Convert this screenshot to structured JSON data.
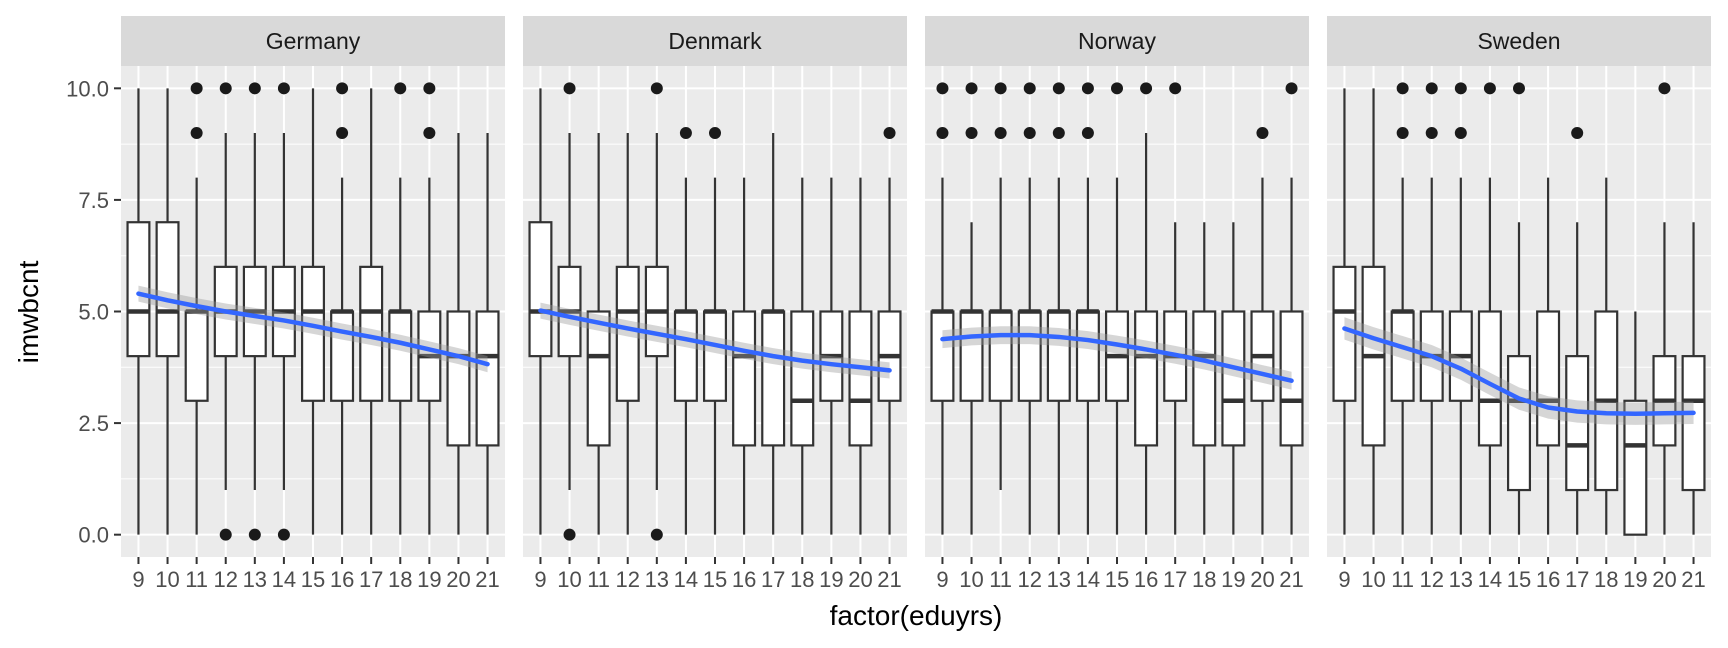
{
  "chart_data": {
    "type": "boxplot",
    "xlabel": "factor(eduyrs)",
    "ylabel": "imwbcnt",
    "ylim": [
      -0.5,
      10.5
    ],
    "y_ticks": [
      0.0,
      2.5,
      5.0,
      7.5,
      10.0
    ],
    "y_tick_labels": [
      "0.0",
      "2.5",
      "5.0",
      "7.5",
      "10.0"
    ],
    "categories": [
      "9",
      "10",
      "11",
      "12",
      "13",
      "14",
      "15",
      "16",
      "17",
      "18",
      "19",
      "20",
      "21"
    ],
    "grid": true,
    "smooth_line_color": "#3366FF",
    "panels": [
      {
        "name": "Germany",
        "boxes": [
          {
            "x": "9",
            "lower": 0,
            "q1": 4,
            "median": 5,
            "q3": 7,
            "upper": 10,
            "outliers": []
          },
          {
            "x": "10",
            "lower": 0,
            "q1": 4,
            "median": 5,
            "q3": 7,
            "upper": 10,
            "outliers": []
          },
          {
            "x": "11",
            "lower": 0,
            "q1": 3,
            "median": 5,
            "q3": 5,
            "upper": 8,
            "outliers": [
              9,
              10
            ]
          },
          {
            "x": "12",
            "lower": 1,
            "q1": 4,
            "median": 5,
            "q3": 6,
            "upper": 9,
            "outliers": [
              0,
              10
            ]
          },
          {
            "x": "13",
            "lower": 1,
            "q1": 4,
            "median": 5,
            "q3": 6,
            "upper": 9,
            "outliers": [
              0,
              10
            ]
          },
          {
            "x": "14",
            "lower": 1,
            "q1": 4,
            "median": 5,
            "q3": 6,
            "upper": 9,
            "outliers": [
              0,
              10
            ]
          },
          {
            "x": "15",
            "lower": 0,
            "q1": 3,
            "median": 5,
            "q3": 6,
            "upper": 10,
            "outliers": []
          },
          {
            "x": "16",
            "lower": 0,
            "q1": 3,
            "median": 5,
            "q3": 5,
            "upper": 8,
            "outliers": [
              9,
              10
            ]
          },
          {
            "x": "17",
            "lower": 0,
            "q1": 3,
            "median": 5,
            "q3": 6,
            "upper": 10,
            "outliers": []
          },
          {
            "x": "18",
            "lower": 0,
            "q1": 3,
            "median": 5,
            "q3": 5,
            "upper": 8,
            "outliers": [
              10
            ]
          },
          {
            "x": "19",
            "lower": 0,
            "q1": 3,
            "median": 4,
            "q3": 5,
            "upper": 8,
            "outliers": [
              9,
              10
            ]
          },
          {
            "x": "20",
            "lower": 0,
            "q1": 2,
            "median": 4,
            "q3": 5,
            "upper": 9,
            "outliers": []
          },
          {
            "x": "21",
            "lower": 0,
            "q1": 2,
            "median": 4,
            "q3": 5,
            "upper": 9,
            "outliers": []
          }
        ],
        "smooth": [
          5.4,
          5.25,
          5.12,
          5.0,
          4.9,
          4.8,
          4.68,
          4.55,
          4.43,
          4.3,
          4.15,
          4.0,
          3.82
        ],
        "band": 0.18
      },
      {
        "name": "Denmark",
        "boxes": [
          {
            "x": "9",
            "lower": 0,
            "q1": 4,
            "median": 5,
            "q3": 7,
            "upper": 10,
            "outliers": []
          },
          {
            "x": "10",
            "lower": 1,
            "q1": 4,
            "median": 5,
            "q3": 6,
            "upper": 9,
            "outliers": [
              0,
              10
            ]
          },
          {
            "x": "11",
            "lower": 0,
            "q1": 2,
            "median": 4,
            "q3": 5,
            "upper": 9,
            "outliers": []
          },
          {
            "x": "12",
            "lower": 0,
            "q1": 3,
            "median": 5,
            "q3": 6,
            "upper": 9,
            "outliers": []
          },
          {
            "x": "13",
            "lower": 1,
            "q1": 4,
            "median": 5,
            "q3": 6,
            "upper": 9,
            "outliers": [
              0,
              10
            ]
          },
          {
            "x": "14",
            "lower": 0,
            "q1": 3,
            "median": 5,
            "q3": 5,
            "upper": 8,
            "outliers": [
              9
            ]
          },
          {
            "x": "15",
            "lower": 0,
            "q1": 3,
            "median": 5,
            "q3": 5,
            "upper": 8,
            "outliers": [
              9
            ]
          },
          {
            "x": "16",
            "lower": 0,
            "q1": 2,
            "median": 4,
            "q3": 5,
            "upper": 8,
            "outliers": []
          },
          {
            "x": "17",
            "lower": 0,
            "q1": 2,
            "median": 5,
            "q3": 5,
            "upper": 9,
            "outliers": []
          },
          {
            "x": "18",
            "lower": 0,
            "q1": 2,
            "median": 3,
            "q3": 5,
            "upper": 8,
            "outliers": []
          },
          {
            "x": "19",
            "lower": 0,
            "q1": 3,
            "median": 4,
            "q3": 5,
            "upper": 8,
            "outliers": []
          },
          {
            "x": "20",
            "lower": 0,
            "q1": 2,
            "median": 3,
            "q3": 5,
            "upper": 8,
            "outliers": []
          },
          {
            "x": "21",
            "lower": 0,
            "q1": 3,
            "median": 4,
            "q3": 5,
            "upper": 8,
            "outliers": [
              9
            ]
          }
        ],
        "smooth": [
          5.02,
          4.88,
          4.75,
          4.62,
          4.5,
          4.38,
          4.25,
          4.12,
          4.0,
          3.9,
          3.82,
          3.75,
          3.68
        ],
        "band": 0.18
      },
      {
        "name": "Norway",
        "boxes": [
          {
            "x": "9",
            "lower": 0,
            "q1": 3,
            "median": 5,
            "q3": 5,
            "upper": 8,
            "outliers": [
              9,
              10
            ]
          },
          {
            "x": "10",
            "lower": 0,
            "q1": 3,
            "median": 5,
            "q3": 5,
            "upper": 7,
            "outliers": [
              9,
              10
            ]
          },
          {
            "x": "11",
            "lower": 1,
            "q1": 3,
            "median": 5,
            "q3": 5,
            "upper": 8,
            "outliers": [
              9,
              10
            ]
          },
          {
            "x": "12",
            "lower": 0,
            "q1": 3,
            "median": 5,
            "q3": 5,
            "upper": 8,
            "outliers": [
              9,
              10
            ]
          },
          {
            "x": "13",
            "lower": 0,
            "q1": 3,
            "median": 5,
            "q3": 5,
            "upper": 8,
            "outliers": [
              9,
              10
            ]
          },
          {
            "x": "14",
            "lower": 0,
            "q1": 3,
            "median": 5,
            "q3": 5,
            "upper": 8,
            "outliers": [
              9,
              10
            ]
          },
          {
            "x": "15",
            "lower": 0,
            "q1": 3,
            "median": 4,
            "q3": 5,
            "upper": 8,
            "outliers": [
              10
            ]
          },
          {
            "x": "16",
            "lower": 0,
            "q1": 2,
            "median": 4,
            "q3": 5,
            "upper": 9,
            "outliers": [
              10
            ]
          },
          {
            "x": "17",
            "lower": 0,
            "q1": 3,
            "median": 4,
            "q3": 5,
            "upper": 7,
            "outliers": [
              10
            ]
          },
          {
            "x": "18",
            "lower": 0,
            "q1": 2,
            "median": 4,
            "q3": 5,
            "upper": 7,
            "outliers": []
          },
          {
            "x": "19",
            "lower": 0,
            "q1": 2,
            "median": 3,
            "q3": 5,
            "upper": 7,
            "outliers": []
          },
          {
            "x": "20",
            "lower": 0,
            "q1": 3,
            "median": 4,
            "q3": 5,
            "upper": 8,
            "outliers": [
              9
            ]
          },
          {
            "x": "21",
            "lower": 0,
            "q1": 2,
            "median": 3,
            "q3": 5,
            "upper": 8,
            "outliers": [
              10
            ]
          }
        ],
        "smooth": [
          4.38,
          4.44,
          4.47,
          4.47,
          4.43,
          4.36,
          4.26,
          4.15,
          4.03,
          3.9,
          3.75,
          3.6,
          3.45
        ],
        "band": 0.2
      },
      {
        "name": "Sweden",
        "boxes": [
          {
            "x": "9",
            "lower": 0,
            "q1": 3,
            "median": 5,
            "q3": 6,
            "upper": 10,
            "outliers": []
          },
          {
            "x": "10",
            "lower": 0,
            "q1": 2,
            "median": 4,
            "q3": 6,
            "upper": 10,
            "outliers": []
          },
          {
            "x": "11",
            "lower": 0,
            "q1": 3,
            "median": 5,
            "q3": 5,
            "upper": 8,
            "outliers": [
              9,
              10
            ]
          },
          {
            "x": "12",
            "lower": 0,
            "q1": 3,
            "median": 4,
            "q3": 5,
            "upper": 8,
            "outliers": [
              9,
              10
            ]
          },
          {
            "x": "13",
            "lower": 0,
            "q1": 3,
            "median": 4,
            "q3": 5,
            "upper": 8,
            "outliers": [
              9,
              10
            ]
          },
          {
            "x": "14",
            "lower": 0,
            "q1": 2,
            "median": 3,
            "q3": 5,
            "upper": 8,
            "outliers": [
              10
            ]
          },
          {
            "x": "15",
            "lower": 0,
            "q1": 1,
            "median": 3,
            "q3": 4,
            "upper": 7,
            "outliers": [
              10
            ]
          },
          {
            "x": "16",
            "lower": 0,
            "q1": 2,
            "median": 3,
            "q3": 5,
            "upper": 8,
            "outliers": []
          },
          {
            "x": "17",
            "lower": 0,
            "q1": 1,
            "median": 2,
            "q3": 4,
            "upper": 7,
            "outliers": [
              9
            ]
          },
          {
            "x": "18",
            "lower": 0,
            "q1": 1,
            "median": 3,
            "q3": 5,
            "upper": 8,
            "outliers": []
          },
          {
            "x": "19",
            "lower": 0,
            "q1": 0,
            "median": 2,
            "q3": 3,
            "upper": 5,
            "outliers": []
          },
          {
            "x": "20",
            "lower": 0,
            "q1": 2,
            "median": 3,
            "q3": 4,
            "upper": 7,
            "outliers": [
              10
            ]
          },
          {
            "x": "21",
            "lower": 0,
            "q1": 1,
            "median": 3,
            "q3": 4,
            "upper": 7,
            "outliers": []
          }
        ],
        "smooth": [
          4.62,
          4.4,
          4.2,
          4.0,
          3.72,
          3.38,
          3.05,
          2.85,
          2.76,
          2.72,
          2.71,
          2.72,
          2.73
        ],
        "band": 0.25
      }
    ]
  }
}
